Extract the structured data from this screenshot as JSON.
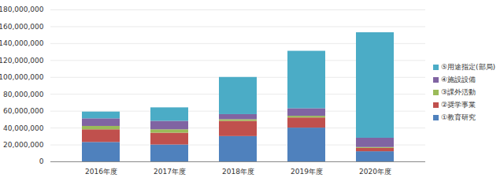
{
  "chart_data": {
    "type": "bar",
    "stacked": true,
    "legend": "right",
    "grid": true,
    "categories": [
      "2016年度",
      "2017年度",
      "2018年度",
      "2019年度",
      "2020年度"
    ],
    "series": [
      {
        "name": "①教育研究",
        "color": "#4f81bd",
        "values": [
          23000000,
          20000000,
          30000000,
          40000000,
          12000000
        ]
      },
      {
        "name": "②奨学事業",
        "color": "#c0504d",
        "values": [
          15000000,
          14000000,
          18000000,
          12000000,
          4000000
        ]
      },
      {
        "name": "③課外活動",
        "color": "#9bbb59",
        "values": [
          4000000,
          4000000,
          2000000,
          2000000,
          1000000
        ]
      },
      {
        "name": "④施設設備",
        "color": "#8064a2",
        "values": [
          9000000,
          10000000,
          6000000,
          9000000,
          11000000
        ]
      },
      {
        "name": "⑤用途指定(部局)",
        "color": "#4bacc6",
        "values": [
          8000000,
          16000000,
          44000000,
          68000000,
          125000000
        ]
      }
    ],
    "ylim": [
      0,
      180000000
    ],
    "yticks": [
      0,
      {
        "value": 20000000,
        "label": "20,000,000"
      },
      {
        "value": 40000000,
        "label": "40,000,000"
      },
      {
        "value": 60000000,
        "label": "60,000,000"
      },
      {
        "value": 80000000,
        "label": "80,000,000"
      },
      {
        "value": 100000000,
        "label": "100,000,000"
      },
      {
        "value": 120000000,
        "label": "120,000,000"
      },
      {
        "value": 140000000,
        "label": "140,000,000"
      },
      {
        "value": 160000000,
        "label": "160,000,000"
      },
      {
        "value": 180000000,
        "label": "180,000,000"
      }
    ]
  }
}
